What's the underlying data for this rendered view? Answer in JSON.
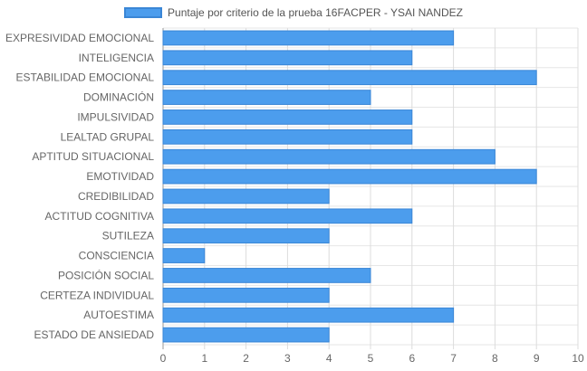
{
  "chart_data": {
    "type": "bar",
    "orientation": "horizontal",
    "categories": [
      "EXPRESIVIDAD EMOCIONAL",
      "INTELIGENCIA",
      "ESTABILIDAD EMOCIONAL",
      "DOMINACIÓN",
      "IMPULSIVIDAD",
      "LEALTAD GRUPAL",
      "APTITUD SITUACIONAL",
      "EMOTIVIDAD",
      "CREDIBILIDAD",
      "ACTITUD COGNITIVA",
      "SUTILEZA",
      "CONSCIENCIA",
      "POSICIÓN SOCIAL",
      "CERTEZA INDIVIDUAL",
      "AUTOESTIMA",
      "ESTADO DE ANSIEDAD"
    ],
    "series": [
      {
        "name": "Puntaje por criterio de la prueba 16FACPER - YSAI NANDEZ",
        "values": [
          7,
          6,
          9,
          5,
          6,
          6,
          8,
          9,
          4,
          6,
          4,
          1,
          5,
          4,
          7,
          4
        ],
        "color": "#4c9ded",
        "border_color": "#3a86d6"
      }
    ],
    "xlim": [
      0,
      10
    ],
    "xticks": [
      "0",
      "1",
      "2",
      "3",
      "4",
      "5",
      "6",
      "7",
      "8",
      "9",
      "10"
    ],
    "grid": true,
    "legend_position": "top"
  }
}
